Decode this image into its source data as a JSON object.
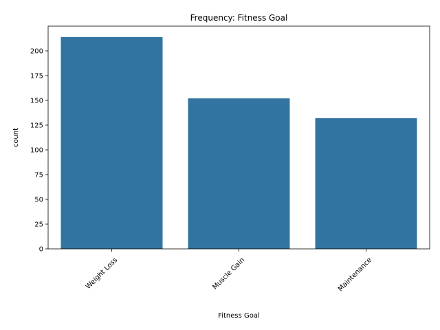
{
  "chart_data": {
    "type": "bar",
    "title": "Frequency: Fitness Goal",
    "xlabel": "Fitness Goal",
    "ylabel": "count",
    "categories": [
      "Weight Loss",
      "Muscle Gain",
      "Maintenance"
    ],
    "values": [
      214,
      152,
      132
    ],
    "ylim": [
      0,
      225
    ],
    "yticks": [
      0,
      25,
      50,
      75,
      100,
      125,
      150,
      175,
      200
    ],
    "ytick_labels": [
      "0",
      "25",
      "50",
      "75",
      "100",
      "125",
      "150",
      "175",
      "200"
    ],
    "xtick_rotation": 45,
    "bar_color": "#3274a1",
    "grid": false,
    "legend": "none"
  }
}
